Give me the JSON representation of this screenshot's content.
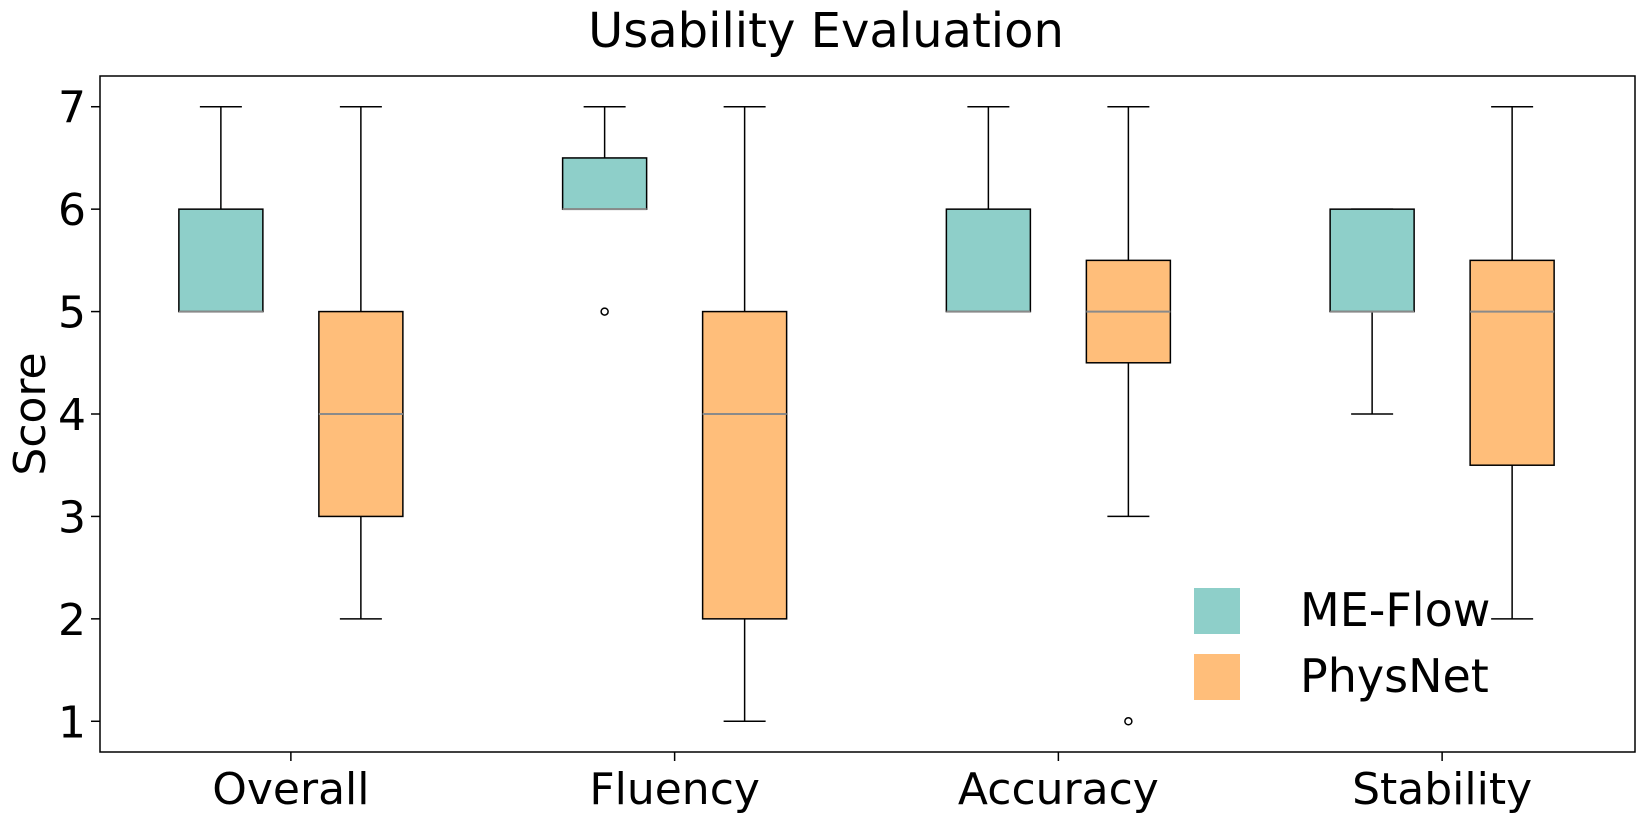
{
  "chart_data": {
    "type": "boxplot",
    "title": "Usability Evaluation",
    "xlabel": "",
    "ylabel": "Score",
    "ylim": [
      0.7,
      7.3
    ],
    "yticks": [
      1,
      2,
      3,
      4,
      5,
      6,
      7
    ],
    "categories": [
      "Overall",
      "Fluency",
      "Accuracy",
      "Stability"
    ],
    "grid": false,
    "legend_position": "bottom-right",
    "series": [
      {
        "name": "ME-Flow",
        "color": "#8ecfc9",
        "boxes": [
          {
            "whisker_low": 5,
            "q1": 5,
            "median": 5,
            "q3": 6,
            "whisker_high": 7,
            "outliers": []
          },
          {
            "whisker_low": 6,
            "q1": 6,
            "median": 6,
            "q3": 6.5,
            "whisker_high": 7,
            "outliers": [
              5
            ]
          },
          {
            "whisker_low": 5,
            "q1": 5,
            "median": 5,
            "q3": 6,
            "whisker_high": 7,
            "outliers": []
          },
          {
            "whisker_low": 4,
            "q1": 5,
            "median": 5,
            "q3": 6,
            "whisker_high": 6,
            "outliers": []
          }
        ]
      },
      {
        "name": "PhysNet",
        "color": "#ffbe7a",
        "boxes": [
          {
            "whisker_low": 2,
            "q1": 3,
            "median": 4,
            "q3": 5,
            "whisker_high": 7,
            "outliers": []
          },
          {
            "whisker_low": 1,
            "q1": 2,
            "median": 4,
            "q3": 5,
            "whisker_high": 7,
            "outliers": []
          },
          {
            "whisker_low": 3,
            "q1": 4.5,
            "median": 5,
            "q3": 5.5,
            "whisker_high": 7,
            "outliers": [
              1
            ]
          },
          {
            "whisker_low": 2,
            "q1": 3.5,
            "median": 5,
            "q3": 5.5,
            "whisker_high": 7,
            "outliers": []
          }
        ]
      }
    ]
  }
}
